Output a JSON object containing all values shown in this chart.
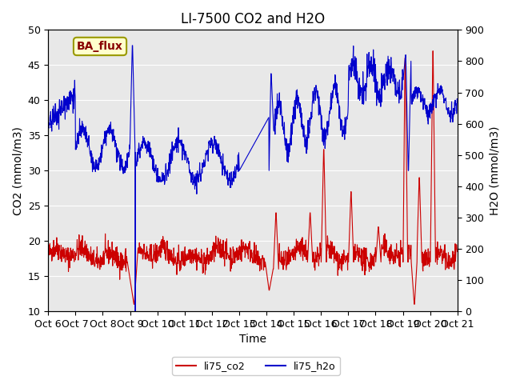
{
  "title": "LI-7500 CO2 and H2O",
  "xlabel": "Time",
  "ylabel_left": "CO2 (mmol/m3)",
  "ylabel_right": "H2O (mmol/m3)",
  "ylim_left": [
    10,
    50
  ],
  "ylim_right": [
    0,
    900
  ],
  "yticks_left": [
    10,
    15,
    20,
    25,
    30,
    35,
    40,
    45,
    50
  ],
  "yticks_right": [
    0,
    100,
    200,
    300,
    400,
    500,
    600,
    700,
    800,
    900
  ],
  "x_tick_labels": [
    "Oct 6",
    "Oct 7",
    "Oct 8",
    "Oct 9",
    "Oct 10",
    "Oct 11",
    "Oct 12",
    "Oct 13",
    "Oct 14",
    "Oct 15",
    "Oct 16",
    "Oct 17",
    "Oct 18",
    "Oct 19",
    "Oct 20",
    "Oct 21"
  ],
  "color_co2": "#cc0000",
  "color_h2o": "#0000cc",
  "bg_color": "#e8e8e8",
  "annotation_text": "BA_flux",
  "annotation_bg": "#ffffcc",
  "annotation_border": "#999900",
  "legend_co2": "li75_co2",
  "legend_h2o": "li75_h2o",
  "title_fontsize": 12,
  "axis_fontsize": 10,
  "tick_fontsize": 9
}
